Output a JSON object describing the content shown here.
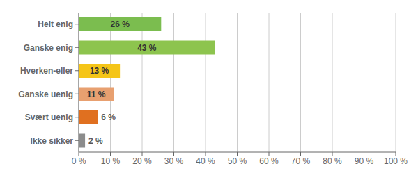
{
  "chart_data": {
    "type": "bar",
    "orientation": "horizontal",
    "categories": [
      "Helt enig",
      "Ganske enig",
      "Hverken-eller",
      "Ganske uenig",
      "Svært uenig",
      "Ikke sikker"
    ],
    "values": [
      26,
      43,
      13,
      11,
      6,
      2
    ],
    "value_labels": [
      "26 %",
      "43 %",
      "13 %",
      "11 %",
      "6 %",
      "2 %"
    ],
    "data_labels": true,
    "colors": [
      "#7BBD4F",
      "#8DC44E",
      "#F5C518",
      "#E8A070",
      "#E07020",
      "#8C8C8C"
    ],
    "xlim": [
      0,
      100
    ],
    "xticks": [
      {
        "value": 0,
        "label": "0 %"
      },
      {
        "value": 10,
        "label": "10 %"
      },
      {
        "value": 20,
        "label": "20 %"
      },
      {
        "value": 30,
        "label": "30 %"
      },
      {
        "value": 40,
        "label": "40 %"
      },
      {
        "value": 50,
        "label": "50 %"
      },
      {
        "value": 60,
        "label": "60 %"
      },
      {
        "value": 70,
        "label": "70 %"
      },
      {
        "value": 80,
        "label": "80 %"
      },
      {
        "value": 90,
        "label": "90 %"
      },
      {
        "value": 100,
        "label": "100 %"
      }
    ],
    "grid": true
  }
}
